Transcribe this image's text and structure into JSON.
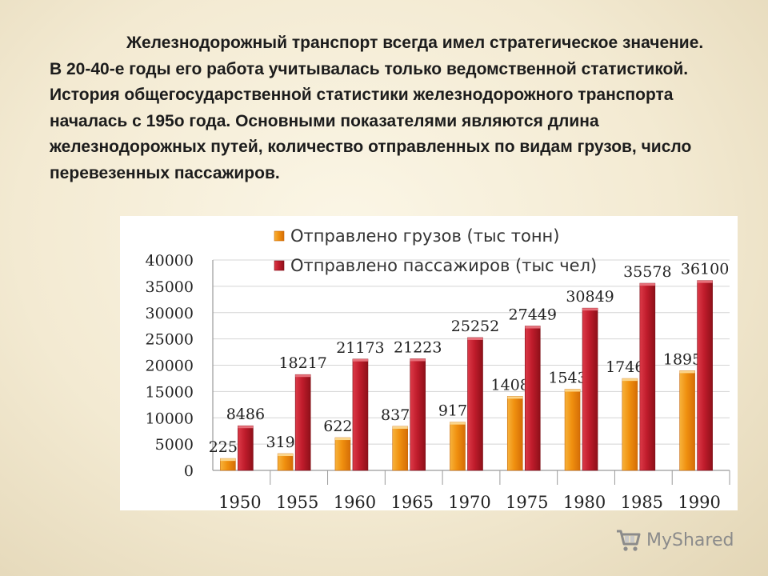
{
  "slide": {
    "paragraph": "Железнодорожный транспорт всегда имел стратегическое значение. В 20-40-е годы его работа учитывалась только ведомственной статистикой. История общегосударственной статистики железнодорожного транспорта началась с 195о года. Основными показателями являются длина железнодорожных путей, количество отправленных по видам грузов, число перевезенных пассажиров."
  },
  "chart_data": {
    "type": "bar",
    "categories": [
      "1950",
      "1955",
      "1960",
      "1965",
      "1970",
      "1975",
      "1980",
      "1985",
      "1990"
    ],
    "series": [
      {
        "name": "Отправлено грузов (тыс тонн)",
        "color": "#f0900f",
        "values": [
          2259,
          3190,
          6229,
          8374,
          9176,
          14089,
          15436,
          17468,
          18950
        ]
      },
      {
        "name": "Отправлено пассажиров (тыс чел)",
        "color": "#c01c2c",
        "values": [
          8486,
          18217,
          21173,
          21223,
          25252,
          27449,
          30849,
          35578,
          36100
        ]
      }
    ],
    "yticks": [
      "0",
      "5000",
      "10000",
      "15000",
      "20000",
      "25000",
      "30000",
      "35000",
      "40000"
    ],
    "ylim": [
      0,
      40000
    ],
    "grid": true,
    "legend": "top"
  },
  "watermark": {
    "brand": "MyShared"
  }
}
